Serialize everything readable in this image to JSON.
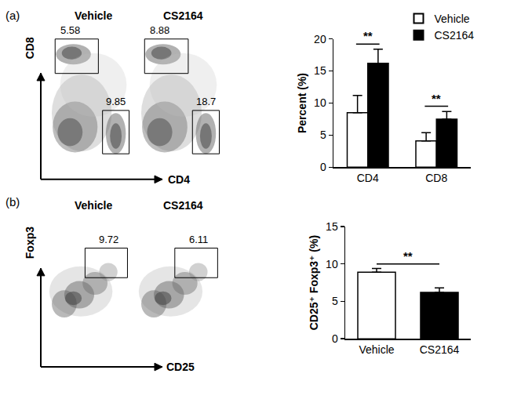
{
  "chart_data": [
    {
      "type": "dot_plot",
      "annotations": [
        "(a)"
      ],
      "panels": [
        "Vehicle",
        "CS2164"
      ],
      "x_label": "CD4",
      "y_label": "CD8",
      "gates": [
        [
          5.58,
          9.85
        ],
        [
          8.88,
          18.7
        ]
      ],
      "tick_labels": false
    },
    {
      "type": "bar",
      "y_label": "Percent (%)",
      "categories": [
        "CD4",
        "CD8"
      ],
      "series": [
        {
          "name": "Vehicle",
          "color": "#ffffff",
          "values": [
            8.5,
            4.1
          ],
          "errors": [
            2.7,
            1.3
          ]
        },
        {
          "name": "CS2164",
          "color": "#000000",
          "values": [
            16.2,
            7.5
          ],
          "errors": [
            2.2,
            1.2
          ]
        }
      ],
      "ylim": [
        0,
        20
      ],
      "yticks": [
        0,
        5,
        10,
        15,
        20
      ],
      "legend": "top right",
      "grid": false,
      "annotations": [
        {
          "text": "**",
          "categories": [
            "CD4"
          ]
        },
        {
          "text": "**",
          "categories": [
            "CD8"
          ]
        }
      ]
    },
    {
      "type": "dot_plot",
      "annotations": [
        "(b)"
      ],
      "panels": [
        "Vehicle",
        "CS2164"
      ],
      "x_label": "CD25",
      "y_label": "Foxp3",
      "gates": [
        [
          9.72
        ],
        [
          6.11
        ]
      ],
      "tick_labels": false
    },
    {
      "type": "bar",
      "y_label": "CD25⁺ Foxp3⁺ (%)",
      "categories": [
        "Vehicle",
        "CS2164"
      ],
      "values": [
        8.9,
        6.2
      ],
      "errors": [
        0.5,
        0.6
      ],
      "colors": [
        "#ffffff",
        "#000000"
      ],
      "ylim": [
        0,
        15
      ],
      "yticks": [
        0,
        5,
        10,
        15
      ],
      "grid": false,
      "annotations": [
        {
          "text": "**",
          "categories": [
            "Vehicle",
            "CS2164"
          ]
        }
      ]
    }
  ]
}
